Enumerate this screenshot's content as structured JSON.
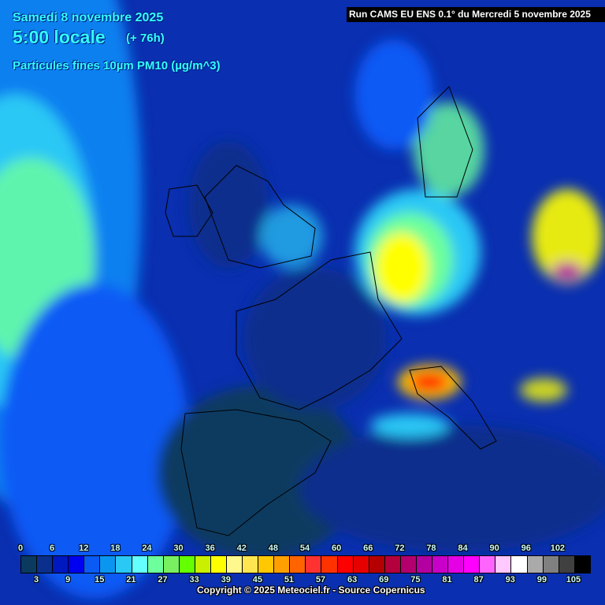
{
  "header": {
    "date": "Samedi 8 novembre 2025",
    "time": "5:00 locale",
    "lead": "(+ 76h)",
    "parameter": "Particules fines 10µm PM10 (µg/m^3)",
    "run": "Run CAMS EU ENS 0.1° du Mercredi 5 novembre 2025"
  },
  "legend": {
    "top_labels": [
      "0",
      "6",
      "12",
      "18",
      "24",
      "30",
      "36",
      "42",
      "48",
      "54",
      "60",
      "66",
      "72",
      "78",
      "84",
      "90",
      "96",
      "102"
    ],
    "bottom_labels": [
      "3",
      "9",
      "15",
      "21",
      "27",
      "33",
      "39",
      "45",
      "51",
      "57",
      "63",
      "69",
      "75",
      "81",
      "87",
      "93",
      "99",
      "105"
    ],
    "colors": [
      "#0a3a60",
      "#0a2f8c",
      "#0018c0",
      "#0000f0",
      "#0a5af5",
      "#0a96f0",
      "#2ac8f5",
      "#64ffff",
      "#6cff9c",
      "#78f060",
      "#64ff00",
      "#c8f000",
      "#ffff00",
      "#fff88c",
      "#ffe650",
      "#ffc800",
      "#ffa000",
      "#ff6400",
      "#ff3232",
      "#ff3200",
      "#ff0000",
      "#e60000",
      "#b40000",
      "#b4003c",
      "#b4006e",
      "#b400a0",
      "#c800c8",
      "#e600e6",
      "#ff00ff",
      "#ff64ff",
      "#ffc8ff",
      "#ffffff",
      "#aaaaaa",
      "#808080",
      "#404040",
      "#000000"
    ]
  },
  "footer": {
    "copyright": "Copyright © 2025 Meteociel.fr - Source Copernicus"
  }
}
